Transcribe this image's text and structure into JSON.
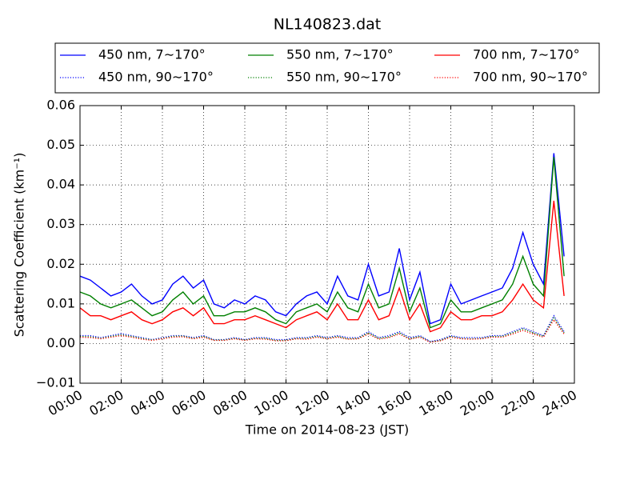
{
  "chart_data": {
    "type": "line",
    "title": "NL140823.dat",
    "xlabel": "Time on 2014-08-23 (JST)",
    "ylabel": "Scattering Coefficient (km⁻¹)",
    "x": [
      "00:00",
      "00:30",
      "01:00",
      "01:30",
      "02:00",
      "02:30",
      "03:00",
      "03:30",
      "04:00",
      "04:30",
      "05:00",
      "05:30",
      "06:00",
      "06:30",
      "07:00",
      "07:30",
      "08:00",
      "08:30",
      "09:00",
      "09:30",
      "10:00",
      "10:30",
      "11:00",
      "11:30",
      "12:00",
      "12:30",
      "13:00",
      "13:30",
      "14:00",
      "14:30",
      "15:00",
      "15:30",
      "16:00",
      "16:30",
      "17:00",
      "17:30",
      "18:00",
      "18:30",
      "19:00",
      "19:30",
      "20:00",
      "20:30",
      "21:00",
      "21:30",
      "22:00",
      "22:30",
      "23:00",
      "23:30"
    ],
    "xlim": [
      "00:00",
      "24:00"
    ],
    "xticks": [
      "00:00",
      "02:00",
      "04:00",
      "06:00",
      "08:00",
      "10:00",
      "12:00",
      "14:00",
      "16:00",
      "18:00",
      "20:00",
      "22:00",
      "24:00"
    ],
    "ylim": [
      -0.01,
      0.06
    ],
    "yticks": [
      {
        "value": -0.01,
        "label": "−0.01"
      },
      {
        "value": 0,
        "label": "0.00"
      },
      {
        "value": 0.01,
        "label": "0.01"
      },
      {
        "value": 0.02,
        "label": "0.02"
      },
      {
        "value": 0.03,
        "label": "0.03"
      },
      {
        "value": 0.04,
        "label": "0.04"
      },
      {
        "value": 0.05,
        "label": "0.05"
      },
      {
        "value": 0.06,
        "label": "0.06"
      }
    ],
    "grid": true,
    "legend": "top",
    "series": [
      {
        "name": "450 nm, 7∼170°",
        "color": "#0000ff",
        "style": "solid",
        "values": [
          0.017,
          0.016,
          0.014,
          0.012,
          0.013,
          0.015,
          0.012,
          0.01,
          0.011,
          0.015,
          0.017,
          0.014,
          0.016,
          0.01,
          0.009,
          0.011,
          0.01,
          0.012,
          0.011,
          0.008,
          0.007,
          0.01,
          0.012,
          0.013,
          0.01,
          0.017,
          0.012,
          0.011,
          0.02,
          0.012,
          0.013,
          0.024,
          0.011,
          0.018,
          0.005,
          0.006,
          0.015,
          0.01,
          0.011,
          0.012,
          0.013,
          0.014,
          0.019,
          0.028,
          0.02,
          0.015,
          0.048,
          0.022
        ]
      },
      {
        "name": "450 nm, 90∼170°",
        "color": "#0000ff",
        "style": "dotted",
        "values": [
          0.002,
          0.002,
          0.0015,
          0.002,
          0.0025,
          0.002,
          0.0015,
          0.001,
          0.0015,
          0.002,
          0.002,
          0.0015,
          0.002,
          0.001,
          0.001,
          0.0015,
          0.001,
          0.0015,
          0.0015,
          0.001,
          0.001,
          0.0015,
          0.0015,
          0.002,
          0.0015,
          0.002,
          0.0015,
          0.0015,
          0.003,
          0.0015,
          0.002,
          0.003,
          0.0015,
          0.002,
          0.0005,
          0.001,
          0.002,
          0.0015,
          0.0015,
          0.0015,
          0.002,
          0.002,
          0.003,
          0.004,
          0.003,
          0.002,
          0.007,
          0.003
        ]
      },
      {
        "name": "550 nm, 7∼170°",
        "color": "#008000",
        "style": "solid",
        "values": [
          0.013,
          0.012,
          0.01,
          0.009,
          0.01,
          0.011,
          0.009,
          0.007,
          0.008,
          0.011,
          0.013,
          0.01,
          0.012,
          0.007,
          0.007,
          0.008,
          0.008,
          0.009,
          0.008,
          0.006,
          0.005,
          0.008,
          0.009,
          0.01,
          0.008,
          0.013,
          0.009,
          0.008,
          0.015,
          0.009,
          0.01,
          0.019,
          0.008,
          0.014,
          0.004,
          0.005,
          0.011,
          0.008,
          0.008,
          0.009,
          0.01,
          0.011,
          0.015,
          0.022,
          0.015,
          0.012,
          0.047,
          0.017
        ]
      },
      {
        "name": "550 nm, 90∼170°",
        "color": "#008000",
        "style": "dotted",
        "values": [
          0.0018,
          0.0017,
          0.0013,
          0.0018,
          0.0022,
          0.0018,
          0.0013,
          0.0009,
          0.0013,
          0.0018,
          0.0019,
          0.0013,
          0.0018,
          0.0009,
          0.0009,
          0.0013,
          0.0009,
          0.0013,
          0.0013,
          0.0008,
          0.0008,
          0.0013,
          0.0013,
          0.0018,
          0.0013,
          0.0018,
          0.0012,
          0.0013,
          0.0027,
          0.0013,
          0.0017,
          0.0027,
          0.0012,
          0.0018,
          0.0004,
          0.0008,
          0.0018,
          0.0013,
          0.0012,
          0.0013,
          0.0018,
          0.0018,
          0.0027,
          0.0037,
          0.0027,
          0.0018,
          0.0065,
          0.0027
        ]
      },
      {
        "name": "700 nm, 7∼170°",
        "color": "#ff0000",
        "style": "solid",
        "values": [
          0.009,
          0.007,
          0.007,
          0.006,
          0.007,
          0.008,
          0.006,
          0.005,
          0.006,
          0.008,
          0.009,
          0.007,
          0.009,
          0.005,
          0.005,
          0.006,
          0.006,
          0.007,
          0.006,
          0.005,
          0.004,
          0.006,
          0.007,
          0.008,
          0.006,
          0.01,
          0.006,
          0.006,
          0.011,
          0.006,
          0.007,
          0.014,
          0.006,
          0.01,
          0.003,
          0.004,
          0.008,
          0.006,
          0.006,
          0.007,
          0.007,
          0.008,
          0.011,
          0.015,
          0.011,
          0.009,
          0.036,
          0.012
        ]
      },
      {
        "name": "700 nm, 90∼170°",
        "color": "#ff0000",
        "style": "dotted",
        "values": [
          0.0016,
          0.0015,
          0.0012,
          0.0016,
          0.002,
          0.0016,
          0.0011,
          0.0008,
          0.0012,
          0.0016,
          0.0017,
          0.0012,
          0.0016,
          0.0008,
          0.0008,
          0.0012,
          0.0008,
          0.0012,
          0.0011,
          0.0007,
          0.0007,
          0.0012,
          0.0011,
          0.0016,
          0.0012,
          0.0016,
          0.0011,
          0.0012,
          0.0024,
          0.0011,
          0.0015,
          0.0024,
          0.0011,
          0.0016,
          0.0003,
          0.0007,
          0.0016,
          0.0012,
          0.0011,
          0.0012,
          0.0016,
          0.0016,
          0.0024,
          0.0033,
          0.0024,
          0.0016,
          0.006,
          0.0024
        ]
      }
    ]
  }
}
